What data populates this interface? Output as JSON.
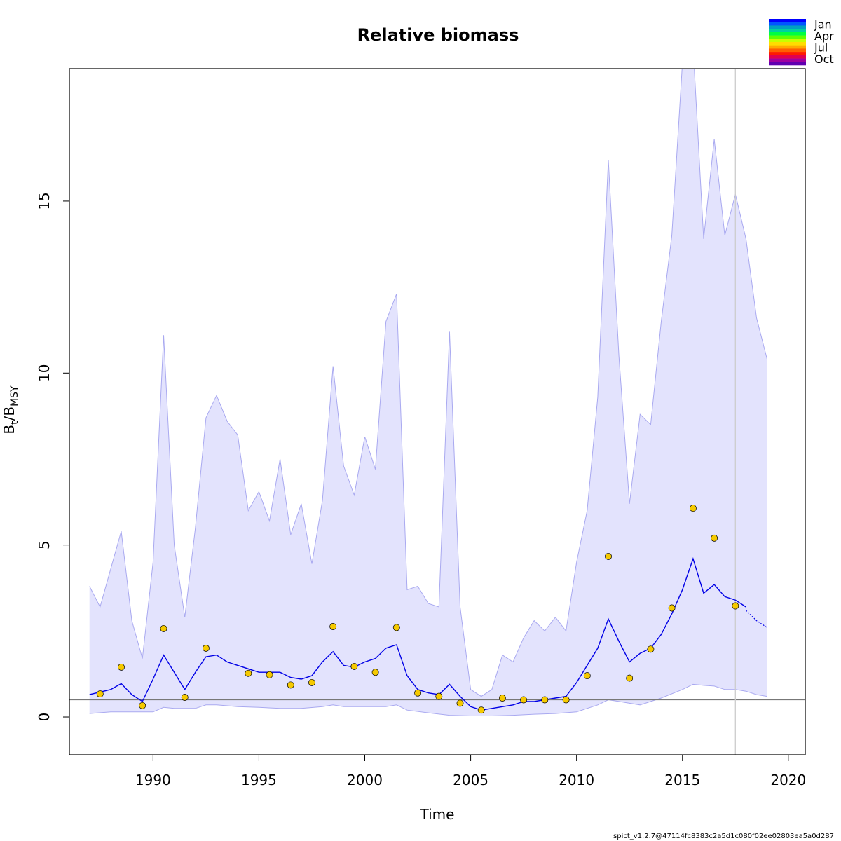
{
  "chart_data": {
    "type": "line",
    "title": "Relative biomass",
    "xlabel": "Time",
    "ylabel_main": "B",
    "ylabel_sub1": "t",
    "ylabel_sep": "/B",
    "ylabel_sub2": "MSY",
    "xlim": [
      1986.05,
      2020.8
    ],
    "ylim": [
      -1.1,
      18.85
    ],
    "xticks": [
      1990,
      1995,
      2000,
      2005,
      2010,
      2015,
      2020
    ],
    "yticks": [
      0,
      5,
      10,
      15
    ],
    "grid": false,
    "reference_line_y": 0.5,
    "vertical_line_x": 2017.5,
    "colors": {
      "band_fill": "#e3e3fd",
      "band_edge": "#a9a9f0",
      "line": "#0000e6",
      "points": "#f5c900",
      "reference_line": "#777777",
      "vertical_line": "#cccccc"
    },
    "legend": {
      "position": "top-right",
      "labels": [
        "Jan",
        "Apr",
        "Jul",
        "Oct"
      ],
      "colors": [
        "#0000ff",
        "#0055ff",
        "#00a0c0",
        "#00d0a0",
        "#00ff40",
        "#60ff00",
        "#c8ff00",
        "#ffdd00",
        "#ffaa00",
        "#ff6000",
        "#ff1a00",
        "#e00050",
        "#a000a0",
        "#6000b0"
      ]
    },
    "series": [
      {
        "name": "estimate",
        "x": [
          1987.0,
          1988.0,
          1988.5,
          1989.0,
          1989.5,
          1990.0,
          1990.5,
          1991.0,
          1991.5,
          1992.0,
          1992.5,
          1993.0,
          1993.5,
          1994.0,
          1994.5,
          1995.0,
          1995.5,
          1996.0,
          1996.5,
          1997.0,
          1997.5,
          1998.0,
          1998.5,
          1999.0,
          1999.5,
          2000.0,
          2000.5,
          2001.0,
          2001.5,
          2002.0,
          2002.5,
          2003.0,
          2003.5,
          2004.0,
          2004.5,
          2005.0,
          2005.5,
          2006.0,
          2006.5,
          2007.0,
          2007.5,
          2008.0,
          2008.5,
          2009.0,
          2009.5,
          2010.0,
          2010.5,
          2011.0,
          2011.5,
          2012.0,
          2012.5,
          2013.0,
          2013.5,
          2014.0,
          2014.5,
          2015.0,
          2015.5,
          2016.0,
          2016.5,
          2017.0,
          2017.5,
          2018.0
        ],
        "y": [
          0.65,
          0.8,
          0.97,
          0.65,
          0.45,
          1.1,
          1.8,
          1.3,
          0.8,
          1.3,
          1.75,
          1.8,
          1.6,
          1.5,
          1.4,
          1.3,
          1.3,
          1.3,
          1.15,
          1.1,
          1.2,
          1.6,
          1.9,
          1.5,
          1.45,
          1.6,
          1.7,
          2.0,
          2.1,
          1.2,
          0.8,
          0.7,
          0.65,
          0.95,
          0.6,
          0.3,
          0.2,
          0.25,
          0.3,
          0.35,
          0.45,
          0.45,
          0.5,
          0.55,
          0.6,
          1.0,
          1.5,
          2.0,
          2.85,
          2.2,
          1.6,
          1.85,
          2.0,
          2.4,
          3.0,
          3.7,
          4.6,
          3.6,
          3.85,
          3.5,
          3.4,
          3.2
        ]
      },
      {
        "name": "forecast",
        "x": [
          2018.0,
          2018.5,
          2019.0
        ],
        "y": [
          3.1,
          2.8,
          2.6
        ]
      },
      {
        "name": "ci_upper",
        "x": [
          1987.0,
          1987.5,
          1988.0,
          1988.5,
          1989.0,
          1989.5,
          1990.0,
          1990.5,
          1991.0,
          1991.5,
          1992.0,
          1992.5,
          1993.0,
          1993.5,
          1994.0,
          1994.5,
          1995.0,
          1995.5,
          1996.0,
          1996.5,
          1997.0,
          1997.5,
          1998.0,
          1998.5,
          1999.0,
          1999.5,
          2000.0,
          2000.5,
          2001.0,
          2001.5,
          2002.0,
          2002.5,
          2003.0,
          2003.5,
          2004.0,
          2004.5,
          2005.0,
          2005.5,
          2006.0,
          2006.5,
          2007.0,
          2007.5,
          2008.0,
          2008.5,
          2009.0,
          2009.5,
          2010.0,
          2010.5,
          2011.0,
          2011.5,
          2012.0,
          2012.5,
          2013.0,
          2013.5,
          2014.0,
          2014.5,
          2015.0,
          2015.5,
          2016.0,
          2016.5,
          2017.0,
          2017.5,
          2018.0,
          2018.5,
          2019.0
        ],
        "y": [
          3.8,
          3.2,
          4.3,
          5.4,
          2.8,
          1.7,
          4.5,
          11.1,
          5.0,
          2.9,
          5.5,
          8.7,
          9.35,
          8.6,
          8.2,
          6.0,
          6.55,
          5.7,
          7.5,
          5.3,
          6.2,
          4.45,
          6.3,
          10.2,
          7.3,
          6.45,
          8.15,
          7.2,
          11.5,
          12.3,
          3.7,
          3.8,
          3.3,
          3.2,
          11.2,
          3.2,
          0.8,
          0.6,
          0.8,
          1.8,
          1.6,
          2.3,
          2.8,
          2.5,
          2.9,
          2.5,
          4.5,
          6.0,
          9.3,
          16.2,
          10.5,
          6.2,
          8.8,
          8.5,
          11.5,
          14.0,
          19.0,
          19.5,
          13.9,
          16.8,
          14.0,
          15.2,
          13.9,
          11.6,
          10.4
        ]
      },
      {
        "name": "ci_lower",
        "x": [
          1987.0,
          1988.0,
          1989.0,
          1990.0,
          1990.5,
          1991.0,
          1992.0,
          1992.5,
          1993.0,
          1994.0,
          1995.0,
          1996.0,
          1997.0,
          1998.0,
          1998.5,
          1999.0,
          2000.0,
          2001.0,
          2001.5,
          2002.0,
          2003.0,
          2004.0,
          2005.0,
          2006.0,
          2007.0,
          2008.0,
          2009.0,
          2010.0,
          2011.0,
          2011.5,
          2012.0,
          2013.0,
          2014.0,
          2015.0,
          2015.5,
          2016.0,
          2016.5,
          2017.0,
          2017.5,
          2018.0,
          2018.5,
          2019.0
        ],
        "y": [
          0.1,
          0.15,
          0.15,
          0.15,
          0.28,
          0.25,
          0.25,
          0.35,
          0.35,
          0.3,
          0.28,
          0.25,
          0.25,
          0.3,
          0.35,
          0.3,
          0.3,
          0.3,
          0.35,
          0.2,
          0.12,
          0.05,
          0.03,
          0.03,
          0.05,
          0.08,
          0.1,
          0.15,
          0.35,
          0.5,
          0.45,
          0.35,
          0.55,
          0.8,
          0.95,
          0.92,
          0.9,
          0.8,
          0.8,
          0.75,
          0.65,
          0.6
        ]
      }
    ],
    "points": {
      "name": "observations",
      "x": [
        1987.5,
        1988.5,
        1989.5,
        1990.5,
        1991.5,
        1992.5,
        1994.5,
        1995.5,
        1996.5,
        1997.5,
        1998.5,
        1999.5,
        2000.5,
        2001.5,
        2002.5,
        2003.5,
        2004.5,
        2005.5,
        2006.5,
        2007.5,
        2008.5,
        2009.5,
        2010.5,
        2011.5,
        2012.5,
        2013.5,
        2014.5,
        2015.5,
        2016.5,
        2017.5
      ],
      "y": [
        0.67,
        1.45,
        0.33,
        2.57,
        0.57,
        2.0,
        1.27,
        1.23,
        0.93,
        1.0,
        2.63,
        1.47,
        1.3,
        2.6,
        0.7,
        0.6,
        0.4,
        0.2,
        0.55,
        0.5,
        0.5,
        0.5,
        1.2,
        4.67,
        1.13,
        1.97,
        3.17,
        6.07,
        5.2,
        3.23
      ]
    },
    "footer": "spict_v1.2.7@47114fc8383c2a5d1c080f02ee02803ea5a0d287"
  }
}
